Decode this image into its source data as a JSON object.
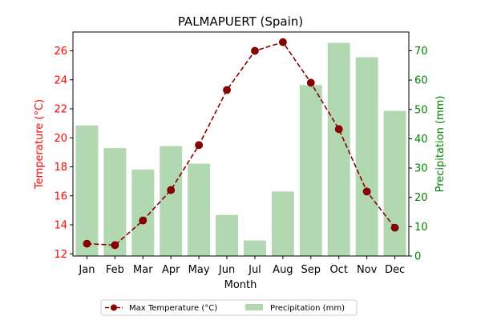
{
  "chart_data": {
    "type": "bar",
    "title": "PALMAPUERT (Spain)",
    "xlabel": "Month",
    "categories": [
      "Jan",
      "Feb",
      "Mar",
      "Apr",
      "May",
      "Jun",
      "Jul",
      "Aug",
      "Sep",
      "Oct",
      "Nov",
      "Dec"
    ],
    "series": [
      {
        "name": "Max Temperature (°C)",
        "type": "line",
        "axis": "left",
        "color": "#8b0000",
        "line_style": "dashed",
        "marker": "circle",
        "values": [
          12.7,
          12.6,
          14.3,
          16.4,
          19.5,
          23.3,
          26.0,
          26.6,
          23.8,
          20.6,
          16.3,
          13.8
        ]
      },
      {
        "name": "Precipitation (mm)",
        "type": "bar",
        "axis": "right",
        "color": "#b2d8b2",
        "values": [
          44.5,
          36.8,
          29.5,
          37.5,
          31.5,
          14.0,
          5.3,
          22.0,
          58.3,
          72.7,
          67.8,
          49.5
        ]
      }
    ],
    "y_left": {
      "label": "Temperature (°C)",
      "color": "#ff0000",
      "range": [
        11.85,
        27.3
      ],
      "ticks": [
        12,
        14,
        16,
        18,
        20,
        22,
        24,
        26
      ]
    },
    "y_right": {
      "label": "Precipitation (mm)",
      "color": "#008000",
      "range": [
        0,
        76.4
      ],
      "ticks": [
        0,
        10,
        20,
        30,
        40,
        50,
        60,
        70
      ]
    },
    "grid": false,
    "legend_position": "bottom-center"
  }
}
